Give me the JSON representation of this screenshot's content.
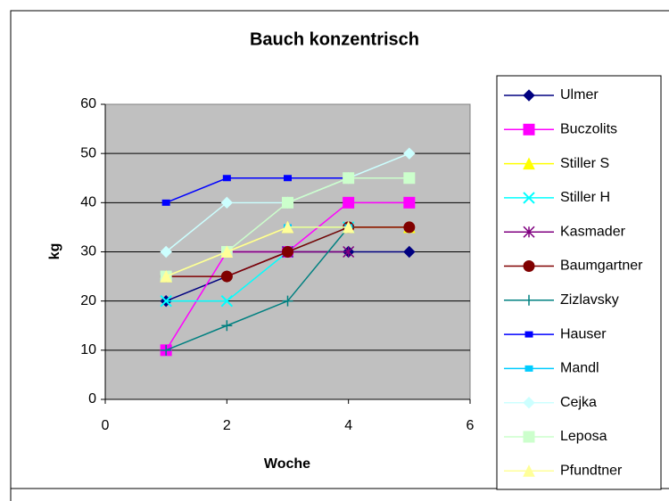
{
  "chart_data": {
    "type": "line",
    "title": "Bauch konzentrisch",
    "xlabel": "Woche",
    "ylabel": "kg",
    "x": [
      1,
      2,
      3,
      4,
      5
    ],
    "xlim": [
      0,
      6
    ],
    "xticks": [
      0,
      2,
      4,
      6
    ],
    "ylim": [
      0,
      60
    ],
    "yticks": [
      0,
      10,
      20,
      30,
      40,
      50,
      60
    ],
    "grid": true,
    "legend": "right",
    "series": [
      {
        "name": "Ulmer",
        "color": "#000080",
        "marker": "diamond",
        "values": [
          20,
          25,
          30,
          30,
          30
        ]
      },
      {
        "name": "Buczolits",
        "color": "#ff00ff",
        "marker": "square",
        "values": [
          10,
          30,
          30,
          40,
          40
        ]
      },
      {
        "name": "Stiller S",
        "color": "#ffff00",
        "marker": "triangle",
        "values": [
          25,
          30,
          35,
          35,
          35
        ]
      },
      {
        "name": "Stiller H",
        "color": "#00ffff",
        "marker": "x",
        "values": [
          20,
          20,
          30,
          35,
          null
        ]
      },
      {
        "name": "Kasmader",
        "color": "#800080",
        "marker": "star",
        "values": [
          null,
          30,
          30,
          30,
          null
        ]
      },
      {
        "name": "Baumgartner",
        "color": "#800000",
        "marker": "circle",
        "values": [
          25,
          25,
          30,
          35,
          35
        ]
      },
      {
        "name": "Zizlavsky",
        "color": "#008080",
        "marker": "plus",
        "values": [
          10,
          15,
          20,
          35,
          null
        ]
      },
      {
        "name": "Hauser",
        "color": "#0000ff",
        "marker": "smallsquare",
        "values": [
          40,
          45,
          45,
          45,
          45
        ]
      },
      {
        "name": "Mandl",
        "color": "#00ccff",
        "marker": "smallsquare",
        "values": [
          null,
          null,
          35,
          35,
          null
        ]
      },
      {
        "name": "Cejka",
        "color": "#ccffff",
        "marker": "diamond",
        "values": [
          30,
          40,
          40,
          45,
          50
        ]
      },
      {
        "name": "Leposa",
        "color": "#ccffcc",
        "marker": "square",
        "values": [
          25,
          30,
          40,
          45,
          45
        ]
      },
      {
        "name": "Pfundtner",
        "color": "#ffff99",
        "marker": "triangle",
        "values": [
          25,
          30,
          35,
          35,
          null
        ]
      }
    ]
  }
}
